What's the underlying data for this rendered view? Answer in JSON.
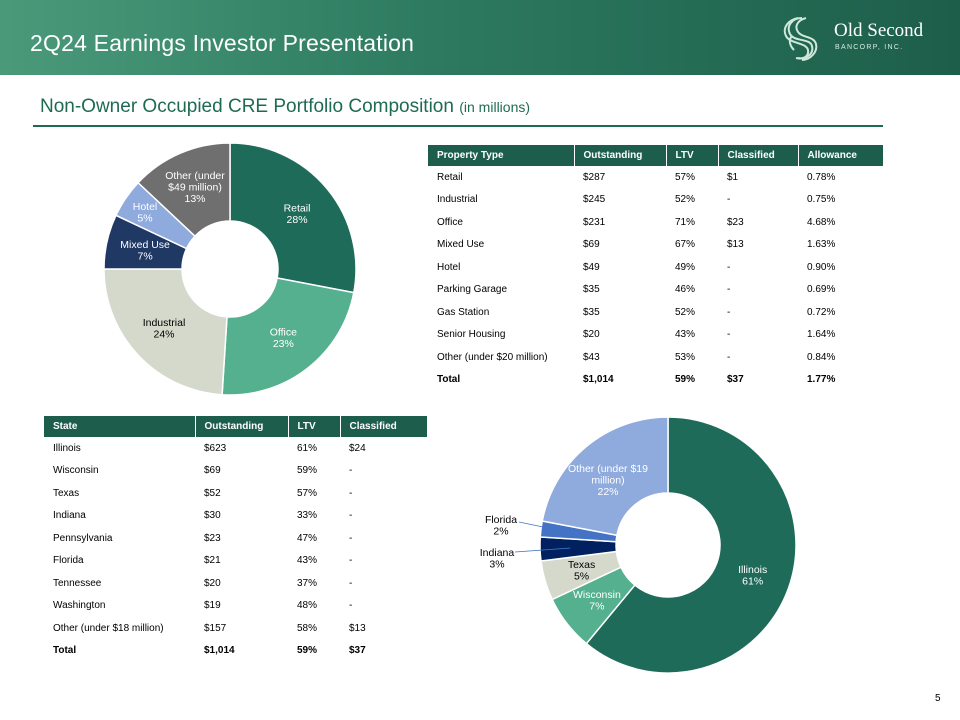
{
  "header": {
    "title": "2Q24 Earnings Investor Presentation",
    "logo_name": "Old Second",
    "logo_sub": "BANCORP, INC."
  },
  "section": {
    "title": "Non-Owner Occupied CRE Portfolio Composition",
    "subtitle": "(in millions)"
  },
  "property_table": {
    "columns": [
      "Property Type",
      "Outstanding",
      "LTV",
      "Classified",
      "Allowance"
    ],
    "rows": [
      [
        "Retail",
        "$287",
        "57%",
        "$1",
        "0.78%"
      ],
      [
        "Industrial",
        "$245",
        "52%",
        "-",
        "0.75%"
      ],
      [
        "Office",
        "$231",
        "71%",
        "$23",
        "4.68%"
      ],
      [
        "Mixed Use",
        "$69",
        "67%",
        "$13",
        "1.63%"
      ],
      [
        "Hotel",
        "$49",
        "49%",
        "-",
        "0.90%"
      ],
      [
        "Parking Garage",
        "$35",
        "46%",
        "-",
        "0.69%"
      ],
      [
        "Gas Station",
        "$35",
        "52%",
        "-",
        "0.72%"
      ],
      [
        "Senior Housing",
        "$20",
        "43%",
        "-",
        "1.64%"
      ],
      [
        "Other (under $20 million)",
        "$43",
        "53%",
        "-",
        "0.84%"
      ]
    ],
    "total": [
      "Total",
      "$1,014",
      "59%",
      "$37",
      "1.77%"
    ]
  },
  "state_table": {
    "columns": [
      "State",
      "Outstanding",
      "LTV",
      "Classified"
    ],
    "rows": [
      [
        "Illinois",
        "$623",
        "61%",
        "$24"
      ],
      [
        "Wisconsin",
        "$69",
        "59%",
        "-"
      ],
      [
        "Texas",
        "$52",
        "57%",
        "-"
      ],
      [
        "Indiana",
        "$30",
        "33%",
        "-"
      ],
      [
        "Pennsylvania",
        "$23",
        "47%",
        "-"
      ],
      [
        "Florida",
        "$21",
        "43%",
        "-"
      ],
      [
        "Tennessee",
        "$20",
        "37%",
        "-"
      ],
      [
        "Washington",
        "$19",
        "48%",
        "-"
      ],
      [
        "Other (under $18 million)",
        "$157",
        "58%",
        "$13"
      ]
    ],
    "total": [
      "Total",
      "$1,014",
      "59%",
      "$37"
    ]
  },
  "chart_data": [
    {
      "type": "pie",
      "title": "Property Type",
      "slices": [
        {
          "name": "Retail",
          "label": "28%",
          "value": 28,
          "color": "#1e6b5a",
          "text_color": "#ffffff"
        },
        {
          "name": "Office",
          "label": "23%",
          "value": 23,
          "color": "#55b08f",
          "text_color": "#ffffff"
        },
        {
          "name": "Industrial",
          "label": "24%",
          "value": 24,
          "color": "#d4d9cc",
          "text_color": "#000000"
        },
        {
          "name": "Mixed Use",
          "label": "7%",
          "value": 7,
          "color": "#1f3864",
          "text_color": "#ffffff"
        },
        {
          "name": "Hotel",
          "label": "5%",
          "value": 5,
          "color": "#8faadc",
          "text_color": "#ffffff"
        },
        {
          "name": "Other (under $49 million)",
          "label": "13%",
          "value": 13,
          "color": "#6f6f6f",
          "text_color": "#ffffff"
        }
      ]
    },
    {
      "type": "pie",
      "title": "State",
      "slices": [
        {
          "name": "Illinois",
          "label": "61%",
          "value": 61,
          "color": "#1e6b5a",
          "text_color": "#ffffff"
        },
        {
          "name": "Wisconsin",
          "label": "7%",
          "value": 7,
          "color": "#55b08f",
          "text_color": "#ffffff"
        },
        {
          "name": "Texas",
          "label": "5%",
          "value": 5,
          "color": "#d4d9cc",
          "text_color": "#000000"
        },
        {
          "name": "Indiana",
          "label": "3%",
          "value": 3,
          "color": "#002060",
          "text_color": "#000000"
        },
        {
          "name": "Florida",
          "label": "2%",
          "value": 2,
          "color": "#4472c4",
          "text_color": "#000000"
        },
        {
          "name": "Other (under $19 million)",
          "label": "22%",
          "value": 22,
          "color": "#8faadc",
          "text_color": "#ffffff"
        }
      ]
    }
  ],
  "page_number": "5"
}
